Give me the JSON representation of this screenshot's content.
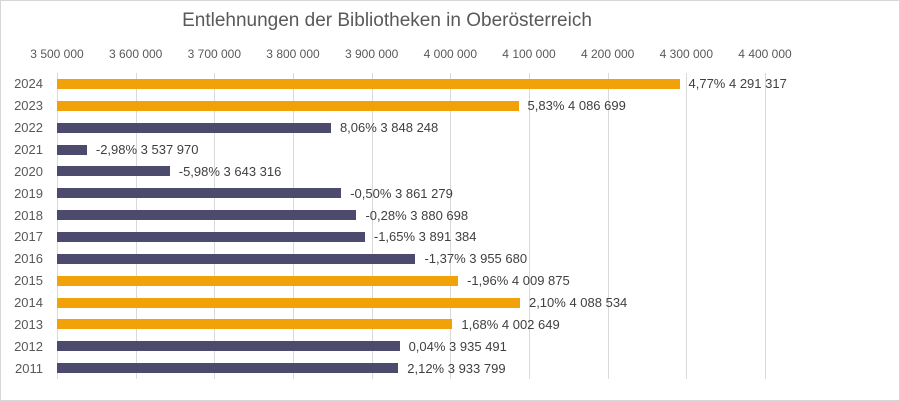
{
  "chart_data": {
    "type": "bar",
    "orientation": "horizontal",
    "title": "Entlehnungen der Bibliotheken in Oberösterreich",
    "legend": "none",
    "grid": "vertical",
    "x_axis": {
      "min": 3500000,
      "max": 4400000,
      "tick_step": 100000,
      "tick_labels": [
        "3 500 000",
        "3 600 000",
        "3 700 000",
        "3 800 000",
        "3 900 000",
        "4 000 000",
        "4 100 000",
        "4 200 000",
        "4 300 000",
        "4 400 000"
      ]
    },
    "colors": {
      "highlight": "#F0A208",
      "normal": "#4C4B6E",
      "gridline": "#D9D9D9",
      "title_text": "#595959",
      "axis_text": "#595959",
      "label_text": "#404040"
    },
    "categories": [
      "2024",
      "2023",
      "2022",
      "2021",
      "2020",
      "2019",
      "2018",
      "2017",
      "2016",
      "2015",
      "2014",
      "2013",
      "2012",
      "2011"
    ],
    "rows": [
      {
        "year": "2024",
        "value": 4291317,
        "change_pct": 4.77,
        "pct_label": "4,77%",
        "value_label": "4 291 317",
        "highlight": true
      },
      {
        "year": "2023",
        "value": 4086699,
        "change_pct": 5.83,
        "pct_label": "5,83%",
        "value_label": "4 086 699",
        "highlight": true
      },
      {
        "year": "2022",
        "value": 3848248,
        "change_pct": 8.06,
        "pct_label": "8,06%",
        "value_label": "3 848 248",
        "highlight": false
      },
      {
        "year": "2021",
        "value": 3537970,
        "change_pct": -2.98,
        "pct_label": "-2,98%",
        "value_label": "3 537 970",
        "highlight": false
      },
      {
        "year": "2020",
        "value": 3643316,
        "change_pct": -5.98,
        "pct_label": "-5,98%",
        "value_label": "3 643 316",
        "highlight": false
      },
      {
        "year": "2019",
        "value": 3861279,
        "change_pct": -0.5,
        "pct_label": "-0,50%",
        "value_label": "3 861 279",
        "highlight": false
      },
      {
        "year": "2018",
        "value": 3880698,
        "change_pct": -0.28,
        "pct_label": "-0,28%",
        "value_label": "3 880 698",
        "highlight": false
      },
      {
        "year": "2017",
        "value": 3891384,
        "change_pct": -1.65,
        "pct_label": "-1,65%",
        "value_label": "3 891 384",
        "highlight": false
      },
      {
        "year": "2016",
        "value": 3955680,
        "change_pct": -1.37,
        "pct_label": "-1,37%",
        "value_label": "3 955 680",
        "highlight": false
      },
      {
        "year": "2015",
        "value": 4009875,
        "change_pct": -1.96,
        "pct_label": "-1,96%",
        "value_label": "4 009 875",
        "highlight": true
      },
      {
        "year": "2014",
        "value": 4088534,
        "change_pct": 2.1,
        "pct_label": "2,10%",
        "value_label": "4 088 534",
        "highlight": true
      },
      {
        "year": "2013",
        "value": 4002649,
        "change_pct": 1.68,
        "pct_label": "1,68%",
        "value_label": "4 002 649",
        "highlight": true
      },
      {
        "year": "2012",
        "value": 3935491,
        "change_pct": 0.04,
        "pct_label": "0,04%",
        "value_label": "3 935 491",
        "highlight": false
      },
      {
        "year": "2011",
        "value": 3933799,
        "change_pct": 2.12,
        "pct_label": "2,12%",
        "value_label": "3 933 799",
        "highlight": false
      }
    ]
  }
}
